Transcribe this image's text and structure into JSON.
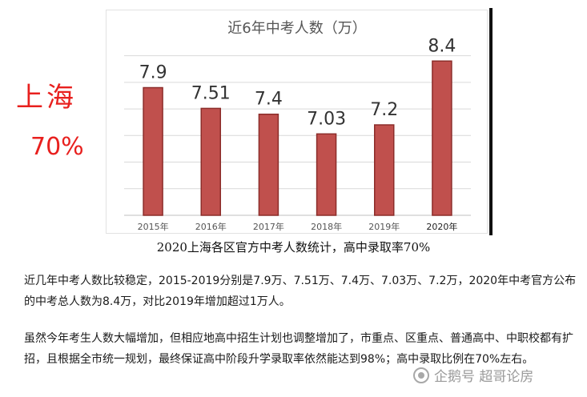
{
  "side": {
    "city": "上海",
    "rate": "70%"
  },
  "chart_data": {
    "type": "bar",
    "title": "近6年中考人数（万）",
    "categories": [
      "2015年",
      "2016年",
      "2017年",
      "2018年",
      "2019年",
      "2020年"
    ],
    "values": [
      7.9,
      7.51,
      7.4,
      7.03,
      7.2,
      8.4
    ],
    "value_labels": [
      "7.9",
      "7.51",
      "7.4",
      "7.03",
      "7.2",
      "8.4"
    ],
    "ylim": [
      5.5,
      8.75
    ],
    "gridlines": [
      6.0,
      6.5,
      7.0,
      7.5,
      8.0,
      8.5
    ],
    "grid": true,
    "legend": "none",
    "bar_color": "#c0504d",
    "bar_edge_color": "#8c2d2a"
  },
  "caption": "2020上海各区官方中考人数统计，高中录取率70%",
  "paragraphs": [
    "近几年中考人数比较稳定，2015-2019分别是7.9万、7.51万、7.4万、7.03万、7.2万，2020年中考官方公布的中考总人数为8.4万，对比2019年增加超过1万人。",
    "虽然今年考生人数大幅增加，但相应地高中招生计划也调整增加了，市重点、区重点、普通高中、中职校都有扩招，且根据全市统一规划，最终保证高中阶段升学录取率依然能达到98%；高中录取比例在70%左右。"
  ],
  "watermark": {
    "icon": "penguin-icon",
    "text": "企鹅号 超哥论房"
  }
}
